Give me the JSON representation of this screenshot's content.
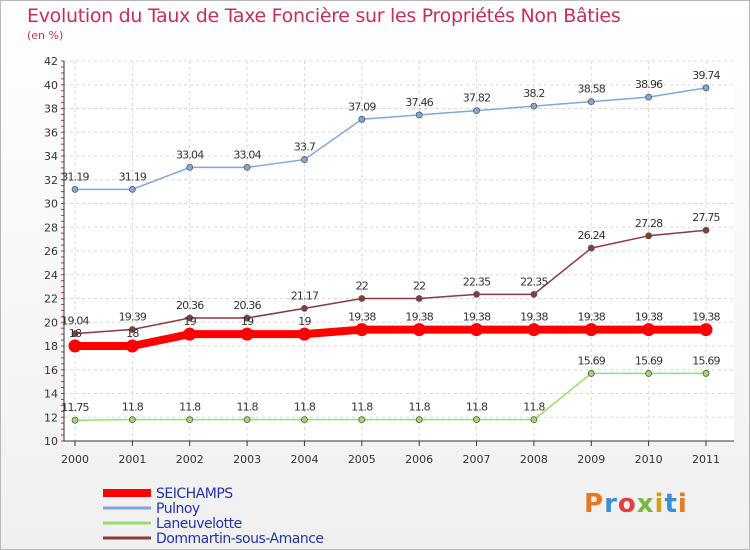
{
  "title": "Evolution du Taux de Taxe Foncière sur les Propriétés Non Bâties",
  "subtitle": "(en %)",
  "logo": "Proxiti",
  "chart_data": {
    "type": "line",
    "title": "Evolution du Taux de Taxe Foncière sur les Propriétés Non Bâties",
    "ylabel": "(en %)",
    "xlabel": "",
    "ylim": [
      10,
      42
    ],
    "yticks": [
      10,
      12,
      14,
      16,
      18,
      20,
      22,
      24,
      26,
      28,
      30,
      32,
      34,
      36,
      38,
      40,
      42
    ],
    "grid": true,
    "legend_position": "bottom-left",
    "categories": [
      "2000",
      "2001",
      "2002",
      "2003",
      "2004",
      "2005",
      "2006",
      "2007",
      "2008",
      "2009",
      "2010",
      "2011"
    ],
    "series": [
      {
        "name": "SEICHAMPS",
        "color": "#ff0000",
        "values": [
          18,
          18,
          19,
          19,
          19,
          19.38,
          19.38,
          19.38,
          19.38,
          19.38,
          19.38,
          19.38
        ],
        "labels": [
          "18",
          "18",
          "19",
          "19",
          "19",
          "19.38",
          "19.38",
          "19.38",
          "19.38",
          "19.38",
          "19.38",
          "19.38"
        ]
      },
      {
        "name": "Pulnoy",
        "color": "#7fa9d6",
        "values": [
          31.19,
          31.19,
          33.04,
          33.04,
          33.7,
          37.09,
          37.46,
          37.82,
          38.2,
          38.58,
          38.96,
          39.74
        ],
        "labels": [
          "31.19",
          "31.19",
          "33.04",
          "33.04",
          "33.7",
          "37.09",
          "37.46",
          "37.82",
          "38.2",
          "38.58",
          "38.96",
          "39.74"
        ]
      },
      {
        "name": "Laneuvelotte",
        "color": "#9ddc6b",
        "values": [
          11.75,
          11.8,
          11.8,
          11.8,
          11.8,
          11.8,
          11.8,
          11.8,
          11.8,
          15.69,
          15.69,
          15.69
        ],
        "labels": [
          "11.75",
          "11.8",
          "11.8",
          "11.8",
          "11.8",
          "11.8",
          "11.8",
          "11.8",
          "11.8",
          "15.69",
          "15.69",
          "15.69"
        ]
      },
      {
        "name": "Dommartin-sous-Amance",
        "color": "#8b3a3a",
        "values": [
          19.04,
          19.39,
          20.36,
          20.36,
          21.17,
          22,
          22,
          22.35,
          22.35,
          26.24,
          27.28,
          27.75
        ],
        "labels": [
          "19.04",
          "19.39",
          "20.36",
          "20.36",
          "21.17",
          "22",
          "22",
          "22.35",
          "22.35",
          "26.24",
          "27.28",
          "27.75"
        ]
      }
    ]
  }
}
